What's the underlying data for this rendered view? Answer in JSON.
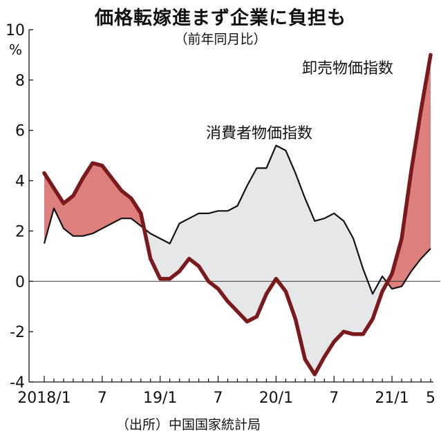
{
  "chart_data": {
    "type": "line",
    "title": "価格転嫁進まず企業に負担も",
    "subtitle": "（前年同月比）",
    "ylabel": "%",
    "ylim": [
      -4,
      10
    ],
    "yticks": [
      10,
      8,
      6,
      4,
      2,
      0,
      -2,
      -4
    ],
    "xtick_labels": [
      {
        "label": "2018/1",
        "month": "2018-01"
      },
      {
        "label": "7",
        "month": "2018-07"
      },
      {
        "label": "19/1",
        "month": "2019-01"
      },
      {
        "label": "7",
        "month": "2019-07"
      },
      {
        "label": "20/1",
        "month": "2020-01"
      },
      {
        "label": "7",
        "month": "2020-07"
      },
      {
        "label": "21/1",
        "month": "2021-01"
      },
      {
        "label": "5",
        "month": "2021-05"
      }
    ],
    "x": [
      "2018-01",
      "2018-02",
      "2018-03",
      "2018-04",
      "2018-05",
      "2018-06",
      "2018-07",
      "2018-08",
      "2018-09",
      "2018-10",
      "2018-11",
      "2018-12",
      "2019-01",
      "2019-02",
      "2019-03",
      "2019-04",
      "2019-05",
      "2019-06",
      "2019-07",
      "2019-08",
      "2019-09",
      "2019-10",
      "2019-11",
      "2019-12",
      "2020-01",
      "2020-02",
      "2020-03",
      "2020-04",
      "2020-05",
      "2020-06",
      "2020-07",
      "2020-08",
      "2020-09",
      "2020-10",
      "2020-11",
      "2020-12",
      "2021-01",
      "2021-02",
      "2021-03",
      "2021-04",
      "2021-05"
    ],
    "series": [
      {
        "name": "消費者物価指数",
        "color": "#111111",
        "values": [
          1.5,
          2.9,
          2.1,
          1.8,
          1.8,
          1.9,
          2.1,
          2.3,
          2.5,
          2.5,
          2.2,
          1.9,
          1.7,
          1.5,
          2.3,
          2.5,
          2.7,
          2.7,
          2.8,
          2.8,
          3.0,
          3.8,
          4.5,
          4.5,
          5.4,
          5.2,
          4.3,
          3.3,
          2.4,
          2.5,
          2.7,
          2.4,
          1.7,
          0.5,
          -0.5,
          0.2,
          -0.3,
          -0.2,
          0.4,
          0.9,
          1.3
        ]
      },
      {
        "name": "卸売物価指数",
        "color": "#7a1a1d",
        "values": [
          4.3,
          3.7,
          3.1,
          3.4,
          4.1,
          4.7,
          4.6,
          4.1,
          3.6,
          3.3,
          2.7,
          0.9,
          0.1,
          0.1,
          0.4,
          0.9,
          0.6,
          0.0,
          -0.3,
          -0.8,
          -1.2,
          -1.6,
          -1.4,
          -0.5,
          0.1,
          -0.4,
          -1.5,
          -3.1,
          -3.7,
          -3.0,
          -2.4,
          -2.0,
          -2.1,
          -2.1,
          -1.5,
          -0.4,
          0.3,
          1.7,
          4.4,
          6.8,
          9.0
        ]
      }
    ],
    "fill_above_color": "#dc7f7d",
    "fill_below_color": "#e6e7e9",
    "source": "（出所）中国国家統計局"
  }
}
